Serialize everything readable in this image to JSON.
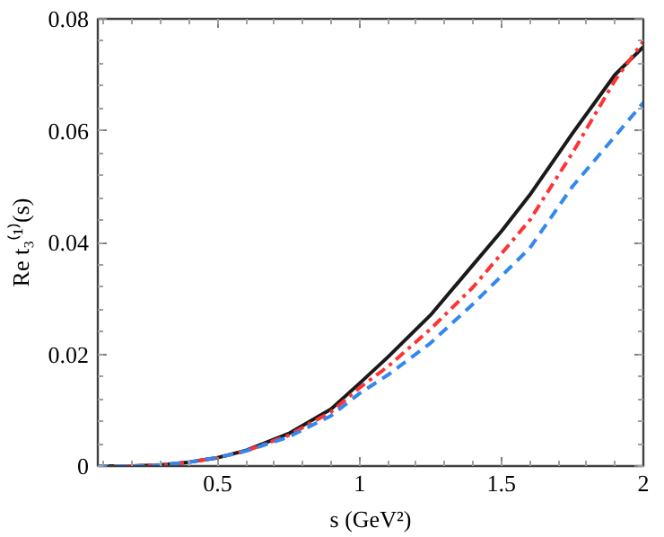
{
  "chart_data": {
    "type": "line",
    "xlabel": "s (GeV²)",
    "ylabel": "Re t₃⁽¹⁾(s)",
    "x": [
      0.078,
      0.2,
      0.3,
      0.4,
      0.5,
      0.6,
      0.75,
      0.9,
      1.0,
      1.1,
      1.25,
      1.4,
      1.5,
      1.6,
      1.75,
      1.9,
      2.0
    ],
    "series": [
      {
        "color": "#1a1a1a",
        "line_style": "solid",
        "values": [
          0,
          0,
          0.0002,
          0.0007,
          0.0015,
          0.0028,
          0.0058,
          0.0102,
          0.0148,
          0.0195,
          0.027,
          0.036,
          0.042,
          0.0485,
          0.0595,
          0.07,
          0.075
        ]
      },
      {
        "color": "#ff3333",
        "line_style": "dashdot",
        "values": [
          0,
          0,
          0.0002,
          0.0007,
          0.0015,
          0.0027,
          0.0055,
          0.0097,
          0.014,
          0.0178,
          0.0245,
          0.032,
          0.038,
          0.044,
          0.056,
          0.069,
          0.076
        ]
      },
      {
        "color": "#3388ee",
        "line_style": "dashed",
        "values": [
          0,
          0,
          0.0002,
          0.0007,
          0.0015,
          0.0027,
          0.0052,
          0.009,
          0.013,
          0.0163,
          0.022,
          0.029,
          0.034,
          0.039,
          0.05,
          0.059,
          0.065
        ]
      }
    ],
    "xlim": [
      0.078,
      2.0
    ],
    "ylim": [
      0,
      0.08
    ],
    "xticks": [
      0.5,
      1,
      1.5,
      2
    ],
    "yticks": [
      0,
      0.02,
      0.04,
      0.06,
      0.08
    ],
    "grid": false
  }
}
